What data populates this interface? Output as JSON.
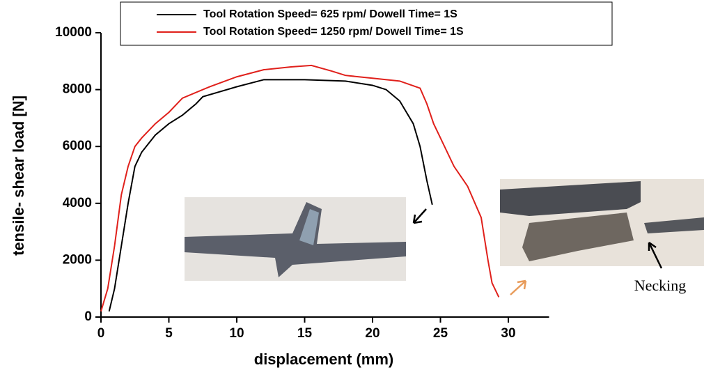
{
  "chart_data": {
    "type": "line",
    "xlabel": "displacement (mm)",
    "ylabel": "tensile- shear load [N]",
    "xlim": [
      0,
      33
    ],
    "ylim": [
      0,
      10000
    ],
    "xticks": [
      0,
      5,
      10,
      15,
      20,
      25,
      30
    ],
    "yticks": [
      0,
      2000,
      4000,
      6000,
      8000,
      10000
    ],
    "annotation": "Necking",
    "series": [
      {
        "name": "Tool Rotation Speed= 625 rpm/ Dowell Time= 1S",
        "color": "#000000",
        "x": [
          0.6,
          1,
          1.5,
          2,
          2.5,
          3,
          4,
          5,
          6,
          7,
          7.5,
          10,
          12,
          15,
          18,
          20,
          21,
          22,
          23,
          23.5,
          24,
          24.4
        ],
        "values": [
          200,
          1000,
          2500,
          4000,
          5300,
          5800,
          6400,
          6800,
          7100,
          7500,
          7750,
          8100,
          8350,
          8350,
          8300,
          8150,
          8000,
          7600,
          6800,
          6000,
          4800,
          3950
        ]
      },
      {
        "name": "Tool Rotation Speed= 1250 rpm/ Dowell Time= 1S",
        "color": "#e0201b",
        "x": [
          0,
          0.5,
          1,
          1.5,
          2,
          2.5,
          3,
          4,
          5,
          6,
          8,
          10,
          12,
          14,
          15.5,
          17,
          18,
          20,
          22,
          23.5,
          24,
          24.5,
          25,
          26,
          27,
          28,
          28.5,
          28.8,
          29.3
        ],
        "values": [
          200,
          1000,
          2500,
          4300,
          5300,
          6000,
          6300,
          6800,
          7200,
          7700,
          8100,
          8450,
          8700,
          8800,
          8850,
          8650,
          8500,
          8400,
          8300,
          8050,
          7500,
          6800,
          6300,
          5300,
          4600,
          3500,
          2000,
          1200,
          700
        ]
      }
    ]
  }
}
